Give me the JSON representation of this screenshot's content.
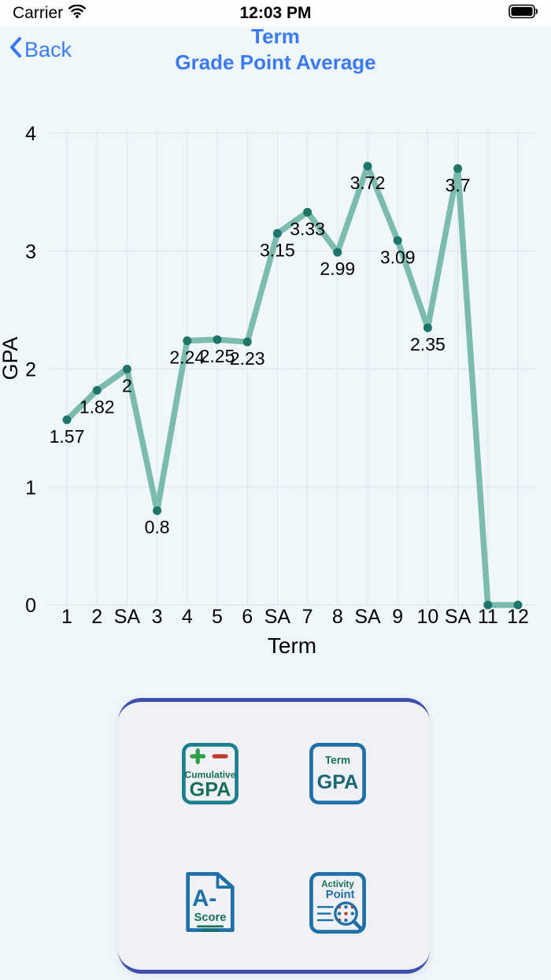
{
  "status_bar": {
    "carrier": "Carrier",
    "time": "12:03 PM"
  },
  "nav": {
    "back_label": "Back",
    "title_line1": "Term",
    "title_line2": "Grade Point Average",
    "accent_color": "#3a7af5"
  },
  "chart_data": {
    "type": "line",
    "title": "",
    "xlabel": "Term",
    "ylabel": "GPA",
    "categories": [
      "1",
      "2",
      "SA",
      "3",
      "4",
      "5",
      "6",
      "SA",
      "7",
      "8",
      "SA",
      "9",
      "10",
      "SA",
      "11",
      "12"
    ],
    "values": [
      1.57,
      1.82,
      2,
      0.8,
      2.24,
      2.25,
      2.23,
      3.15,
      3.33,
      2.99,
      3.72,
      3.09,
      2.35,
      3.7,
      0,
      0
    ],
    "point_labels": [
      "1.57",
      "1.82",
      "2",
      "0.8",
      "2.24",
      "2.25",
      "2.23",
      "3.15",
      "3.33",
      "2.99",
      "3.72",
      "3.09",
      "2.35",
      "3.7",
      "",
      ""
    ],
    "ylim": [
      0,
      4
    ],
    "yticks": [
      0,
      1,
      2,
      3,
      4
    ],
    "grid": true,
    "legend": "none",
    "line_color": "#72b6a9",
    "point_color": "#1f7668",
    "grid_color": "#dde6ec",
    "text_color": "#000000"
  },
  "card": {
    "accent_color": "#3f4fae",
    "buttons": [
      {
        "id": "cumulative-gpa",
        "line1": "Cumulative",
        "line2": "GPA"
      },
      {
        "id": "term-gpa",
        "line1": "Term",
        "line2": "GPA"
      },
      {
        "id": "a-score",
        "line1": "A-",
        "line2": "Score"
      },
      {
        "id": "activity-point",
        "line1": "Activity",
        "line2": "Point"
      }
    ]
  }
}
